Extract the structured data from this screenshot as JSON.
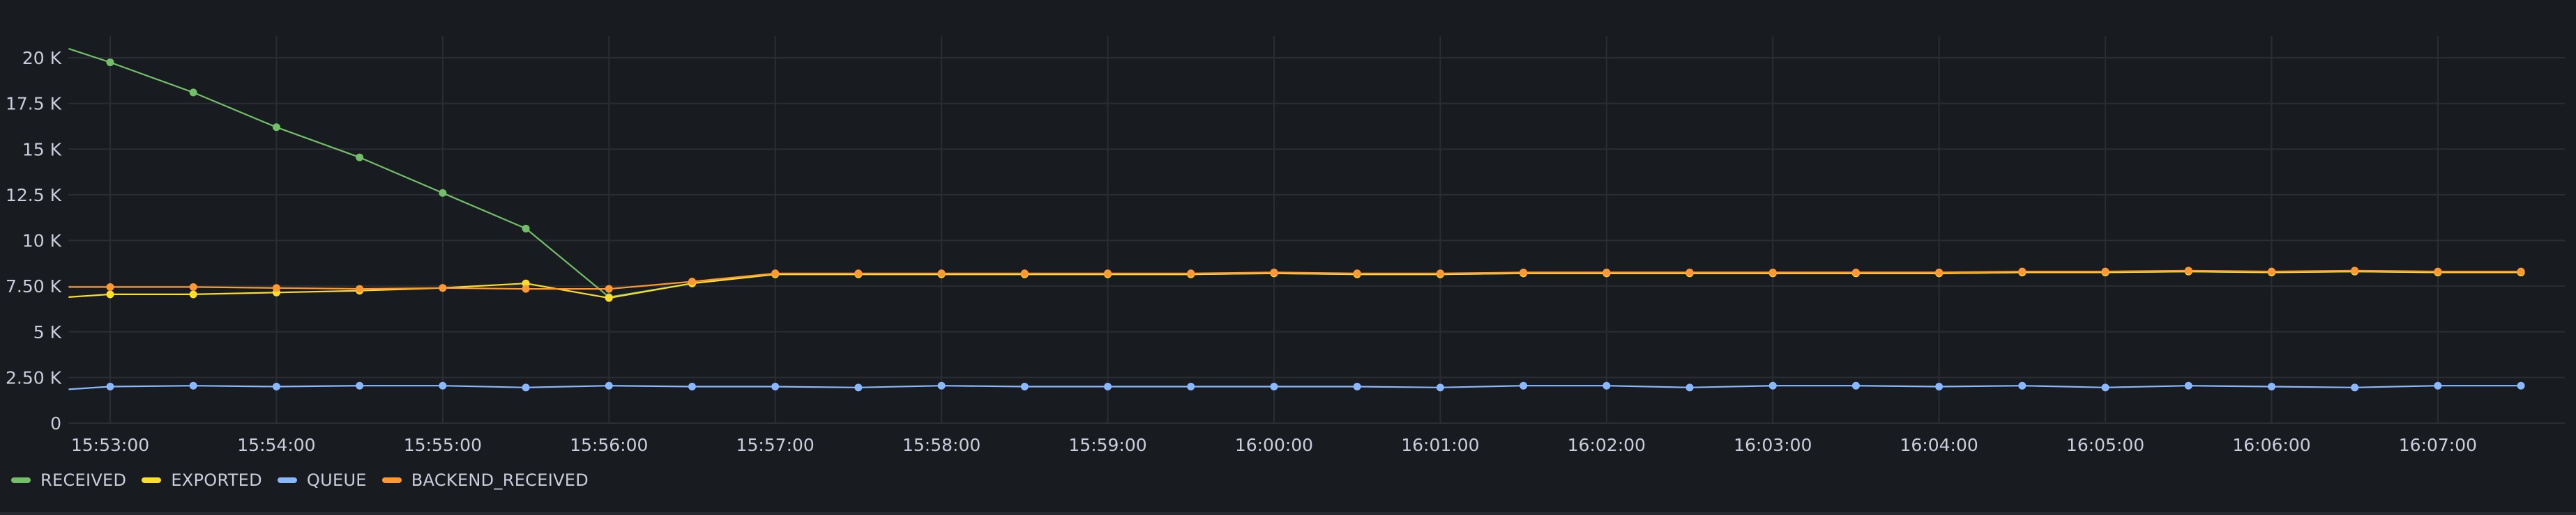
{
  "chart_data": {
    "type": "line",
    "y_ticks": [
      0,
      2500,
      5000,
      7500,
      10000,
      12500,
      15000,
      17500,
      20000
    ],
    "y_tick_labels": [
      "0",
      "2.50 K",
      "5 K",
      "7.50 K",
      "10 K",
      "12.5 K",
      "15 K",
      "17.5 K",
      "20 K"
    ],
    "ylim": [
      0,
      21000
    ],
    "xlim": [
      "15:52:45",
      "16:07:45"
    ],
    "x_tick_labels": [
      "15:53:00",
      "15:54:00",
      "15:55:00",
      "15:56:00",
      "15:57:00",
      "15:58:00",
      "15:59:00",
      "16:00:00",
      "16:01:00",
      "16:02:00",
      "16:03:00",
      "16:04:00",
      "16:05:00",
      "16:06:00",
      "16:07:00"
    ],
    "x": [
      "15:53:00",
      "15:53:30",
      "15:54:00",
      "15:54:30",
      "15:55:00",
      "15:55:30",
      "15:56:00",
      "15:56:30",
      "15:57:00",
      "15:57:30",
      "15:58:00",
      "15:58:30",
      "15:59:00",
      "15:59:30",
      "16:00:00",
      "16:00:30",
      "16:01:00",
      "16:01:30",
      "16:02:00",
      "16:02:30",
      "16:03:00",
      "16:03:30",
      "16:04:00",
      "16:04:30",
      "16:05:00",
      "16:05:30",
      "16:06:00",
      "16:06:30",
      "16:07:00",
      "16:07:30"
    ],
    "x_first": "15:52:45",
    "grid": true,
    "legend_position": "bottom-left",
    "series": [
      {
        "name": "RECEIVED",
        "color": "#73bf69",
        "first_value": 20500,
        "values": [
          19750,
          18100,
          16200,
          14550,
          12600,
          10650,
          6900,
          7650,
          8150,
          8150,
          8150,
          8150,
          8150,
          8150,
          8200,
          8150,
          8150,
          8200,
          8200,
          8200,
          8200,
          8200,
          8200,
          8250,
          8250,
          8300,
          8250,
          8300,
          8250,
          8250
        ]
      },
      {
        "name": "EXPORTED",
        "color": "#fade2a",
        "first_value": 6900,
        "values": [
          7050,
          7050,
          7150,
          7250,
          7400,
          7650,
          6850,
          7650,
          8150,
          8150,
          8150,
          8150,
          8150,
          8150,
          8200,
          8150,
          8150,
          8200,
          8200,
          8200,
          8200,
          8200,
          8200,
          8250,
          8250,
          8300,
          8250,
          8300,
          8250,
          8250
        ]
      },
      {
        "name": "QUEUE",
        "color": "#8ab8ff",
        "first_value": 1850,
        "values": [
          2000,
          2050,
          2000,
          2050,
          2050,
          1950,
          2050,
          2000,
          2000,
          1950,
          2050,
          2000,
          2000,
          2000,
          2000,
          2000,
          1950,
          2050,
          2050,
          1950,
          2050,
          2050,
          2000,
          2050,
          1950,
          2050,
          2000,
          1950,
          2050,
          2050
        ]
      },
      {
        "name": "BACKEND_RECEIVED",
        "color": "#ff9830",
        "first_value": 7450,
        "values": [
          7450,
          7450,
          7400,
          7350,
          7400,
          7350,
          7350,
          7750,
          8200,
          8200,
          8200,
          8200,
          8200,
          8200,
          8250,
          8200,
          8200,
          8250,
          8250,
          8250,
          8250,
          8250,
          8250,
          8300,
          8300,
          8350,
          8300,
          8350,
          8300,
          8300
        ]
      }
    ]
  }
}
